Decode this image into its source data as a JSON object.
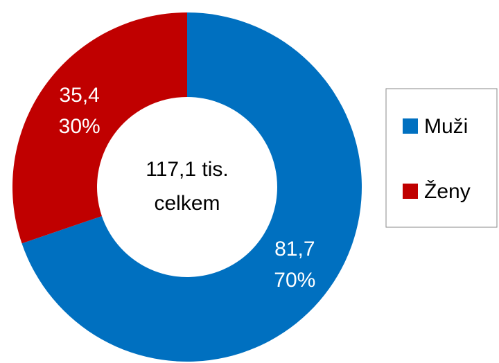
{
  "chart_data": {
    "type": "donut",
    "categories": [
      "Muži",
      "Ženy"
    ],
    "values": [
      81.7,
      35.4
    ],
    "value_labels": [
      "81,7",
      "35,4"
    ],
    "percents": [
      70,
      30
    ],
    "percent_labels": [
      "70%",
      "30%"
    ],
    "colors": [
      "#0070c0",
      "#c00000"
    ],
    "center_label": [
      "117,1 tis.",
      "celkem"
    ],
    "legend": "right"
  }
}
